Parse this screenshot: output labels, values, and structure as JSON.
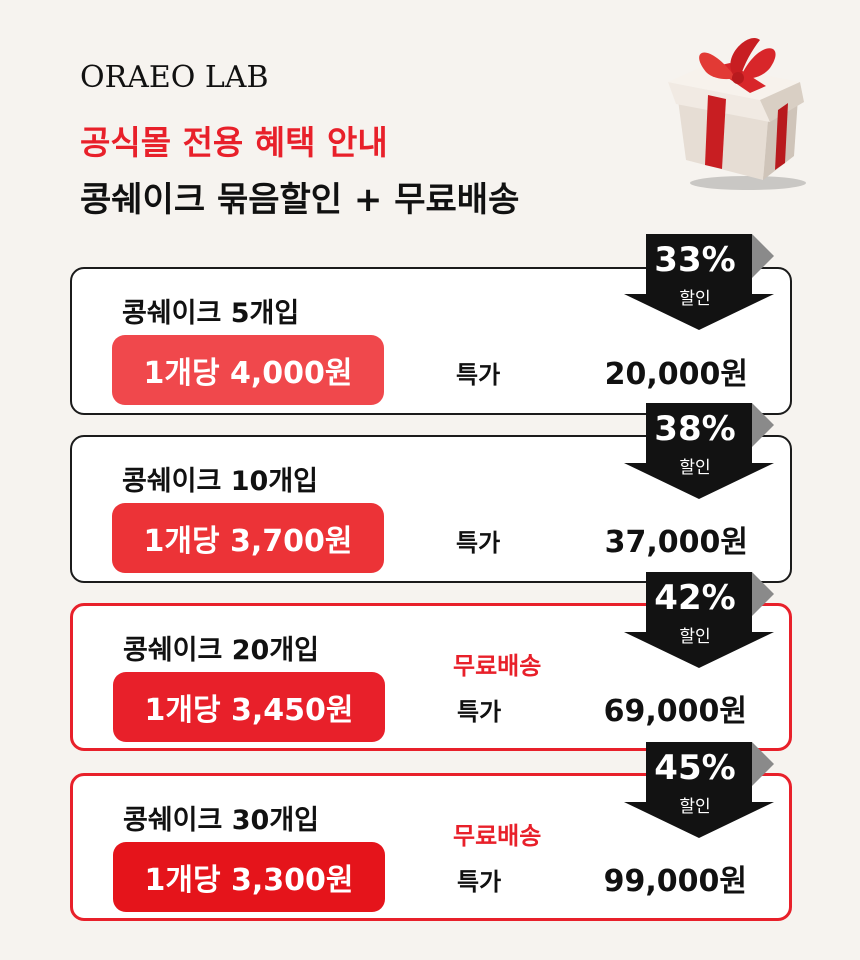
{
  "brand": {
    "logo": "ORAEO LAB"
  },
  "header": {
    "title": "공식몰 전용 혜택 안내",
    "subtitle": "콩쉐이크 묶음할인 + 무료배송"
  },
  "colors": {
    "accent": "#e8202a",
    "pill_light": "#f0484c",
    "badge": "#121212",
    "border": "#1b1b1b"
  },
  "offers": [
    {
      "name": "콩쉐이크 5개입",
      "unit_price": "1개당 4,000원",
      "label": "특가",
      "total": "20,000원",
      "discount": "33%",
      "discount_label": "할인",
      "free_shipping": ""
    },
    {
      "name": "콩쉐이크 10개입",
      "unit_price": "1개당 3,700원",
      "label": "특가",
      "total": "37,000원",
      "discount": "38%",
      "discount_label": "할인",
      "free_shipping": ""
    },
    {
      "name": "콩쉐이크 20개입",
      "unit_price": "1개당 3,450원",
      "label": "특가",
      "total": "69,000원",
      "discount": "42%",
      "discount_label": "할인",
      "free_shipping": "무료배송"
    },
    {
      "name": "콩쉐이크 30개입",
      "unit_price": "1개당 3,300원",
      "label": "특가",
      "total": "99,000원",
      "discount": "45%",
      "discount_label": "할인",
      "free_shipping": "무료배송"
    }
  ]
}
